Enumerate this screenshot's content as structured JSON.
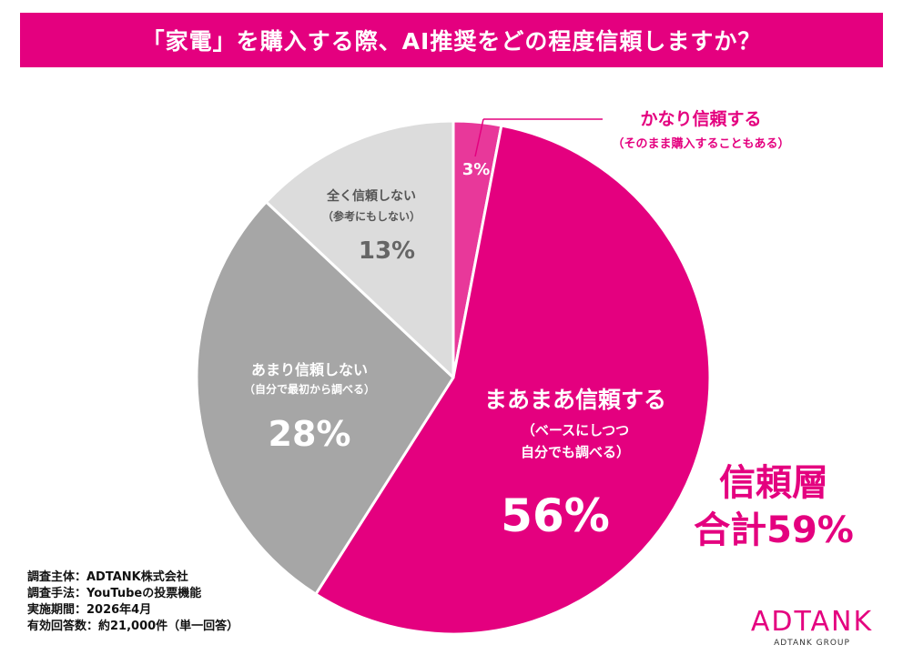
{
  "title": "「家電」を購入する際、AI推奨をどの程度信頼しますか？",
  "colors": {
    "banner": "#e4007f",
    "accent": "#e4007f",
    "very": "#e8389a",
    "somewhat": "#e4007f",
    "not_much": "#a6a6a6",
    "not_at_all": "#dcdcdc"
  },
  "chart_data": {
    "type": "pie",
    "title": "「家電」を購入する際、AI推奨をどの程度信頼しますか？",
    "slices": [
      {
        "label": "かなり信頼する",
        "sublabel": "（そのまま購入することもある）",
        "value": 3,
        "display": "3%"
      },
      {
        "label": "まあまあ信頼する",
        "sublabel_lines": [
          "（ベースにしつつ",
          "自分でも調べる）"
        ],
        "value": 56,
        "display": "56%"
      },
      {
        "label": "あまり信頼しない",
        "sublabel": "（自分で最初から調べる）",
        "value": 28,
        "display": "28%"
      },
      {
        "label": "全く信頼しない",
        "sublabel": "（参考にもしない）",
        "value": 13,
        "display": "13%"
      }
    ],
    "callout": {
      "line1": "信頼層",
      "line2": "合計59%"
    }
  },
  "footnotes": [
    "調査主体：ADTANK株式会社",
    "調査手法：YouTubeの投票機能",
    "実施期間：2026年4月",
    "有効回答数：約21,000件（単一回答）"
  ],
  "logo": {
    "main": "ADTANK",
    "sub": "ADTANK GROUP"
  }
}
